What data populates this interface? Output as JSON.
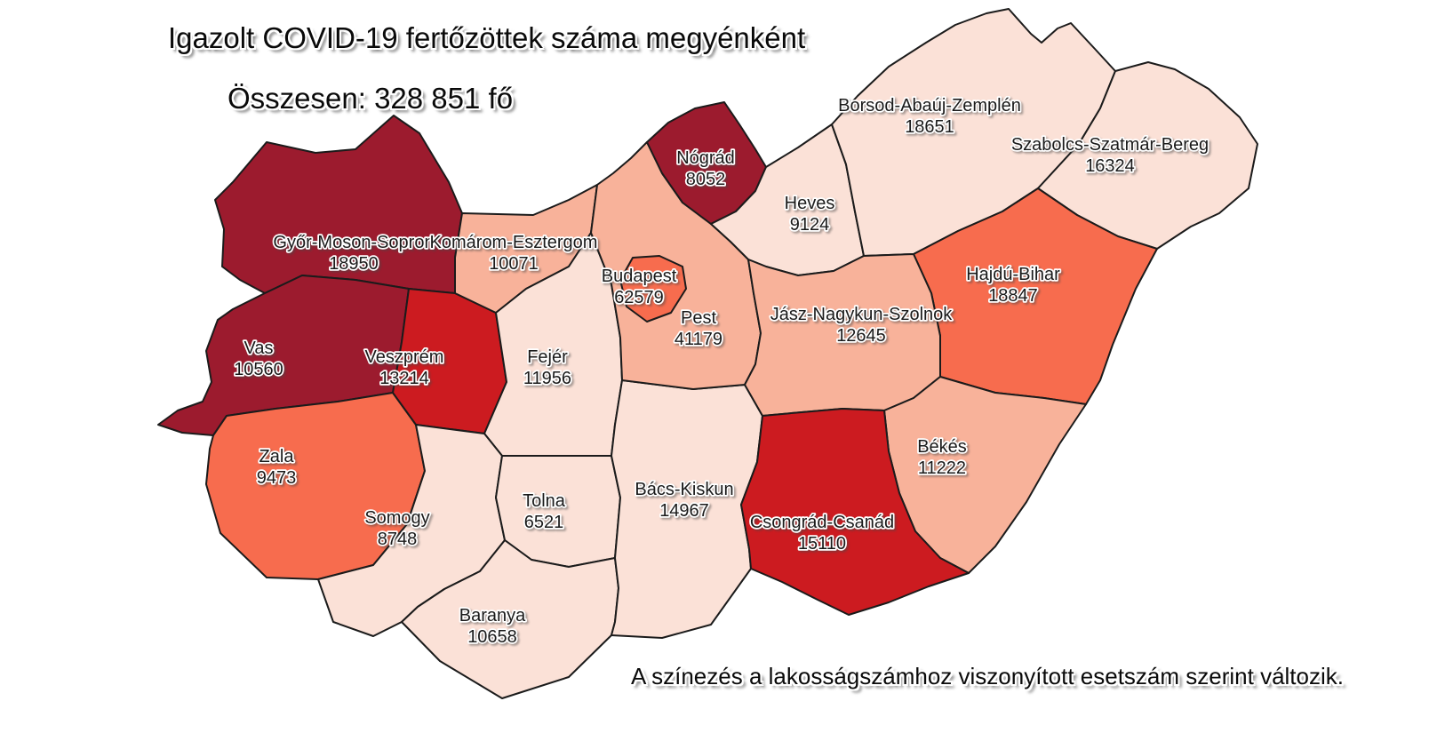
{
  "title": "Igazolt COVID-19 fertőzöttek száma megyénként",
  "subtitle": "Összesen: 328 851 fő",
  "footnote": "A színezés a lakosságszámhoz viszonyított esetszám szerint változik.",
  "legend_tiers": {
    "highest": "#9C1B2E",
    "high": "#CC1B20",
    "medium": "#F76C4E",
    "low": "#F8B29A",
    "lowest": "#FBE1D7"
  },
  "map": {
    "background": "#FFFFFF",
    "outline_color": "#1B1B1B",
    "counties": [
      {
        "id": "gyor-moson-sopron",
        "name": "Győr-Moson-Sopron",
        "cases": 18950,
        "tier": "highest"
      },
      {
        "id": "vas",
        "name": "Vas",
        "cases": 10560,
        "tier": "highest"
      },
      {
        "id": "zala",
        "name": "Zala",
        "cases": 9473,
        "tier": "medium"
      },
      {
        "id": "veszprem",
        "name": "Veszprém",
        "cases": 13214,
        "tier": "high"
      },
      {
        "id": "komarom-esztergom",
        "name": "Komárom-Esztergom",
        "cases": 10071,
        "tier": "low"
      },
      {
        "id": "fejer",
        "name": "Fejér",
        "cases": 11956,
        "tier": "lowest"
      },
      {
        "id": "somogy",
        "name": "Somogy",
        "cases": 8748,
        "tier": "lowest"
      },
      {
        "id": "tolna",
        "name": "Tolna",
        "cases": 6521,
        "tier": "lowest"
      },
      {
        "id": "baranya",
        "name": "Baranya",
        "cases": 10658,
        "tier": "lowest"
      },
      {
        "id": "bacs-kiskun",
        "name": "Bács-Kiskun",
        "cases": 14967,
        "tier": "lowest"
      },
      {
        "id": "pest",
        "name": "Pest",
        "cases": 41179,
        "tier": "low"
      },
      {
        "id": "budapest",
        "name": "Budapest",
        "cases": 62579,
        "tier": "medium"
      },
      {
        "id": "nograd",
        "name": "Nógrád",
        "cases": 8052,
        "tier": "highest"
      },
      {
        "id": "heves",
        "name": "Heves",
        "cases": 9124,
        "tier": "lowest"
      },
      {
        "id": "borsod-abauj-zemplen",
        "name": "Borsod-Abaúj-Zemplén",
        "cases": 18651,
        "tier": "lowest"
      },
      {
        "id": "szabolcs-szatmar-bereg",
        "name": "Szabolcs-Szatmár-Bereg",
        "cases": 16324,
        "tier": "lowest"
      },
      {
        "id": "hajdu-bihar",
        "name": "Hajdú-Bihar",
        "cases": 18847,
        "tier": "medium"
      },
      {
        "id": "jasz-nagykun-szolnok",
        "name": "Jász-Nagykun-Szolnok",
        "cases": 12645,
        "tier": "low"
      },
      {
        "id": "bekes",
        "name": "Békés",
        "cases": 11222,
        "tier": "low"
      },
      {
        "id": "csongrad-csanad",
        "name": "Csongrád-Csanád",
        "cases": 15110,
        "tier": "high"
      }
    ]
  }
}
